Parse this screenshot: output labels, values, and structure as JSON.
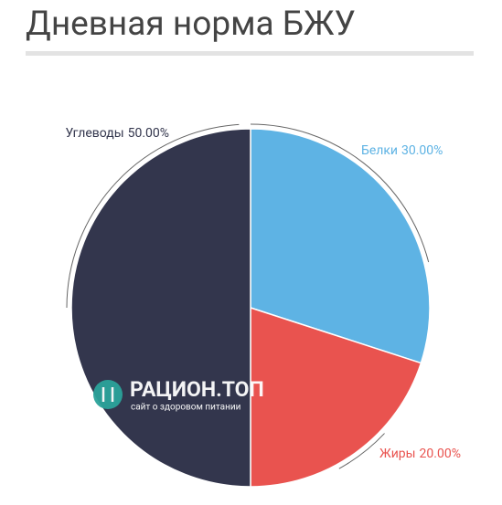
{
  "chart_data": {
    "type": "pie",
    "title": "Дневная норма БЖУ",
    "categories": [
      "Белки",
      "Жиры",
      "Углеводы"
    ],
    "values": [
      30,
      20,
      50
    ],
    "value_labels": [
      "30.00%",
      "20.00%",
      "50.00%"
    ],
    "colors": [
      "#5eb3e4",
      "#e9534f",
      "#33364d"
    ]
  },
  "watermark": {
    "title": "РАЦИОН.ТОП",
    "subtitle": "сайт о здоровом питании"
  }
}
